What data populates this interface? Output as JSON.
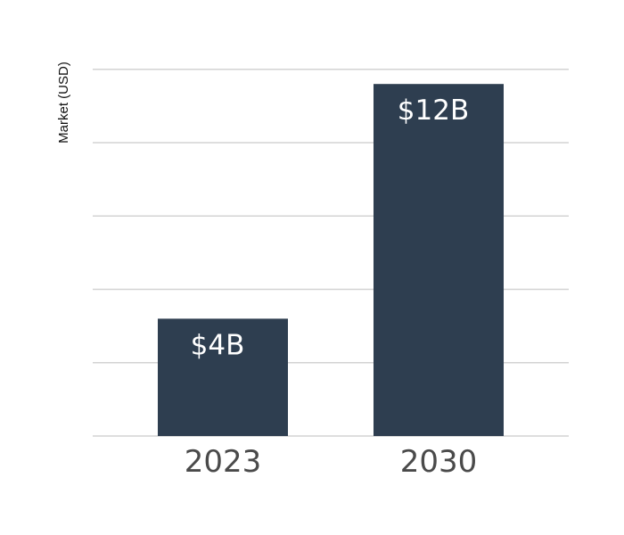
{
  "chart_data": {
    "type": "bar",
    "categories": [
      "2023",
      "2030"
    ],
    "values": [
      4,
      12
    ],
    "data_labels": [
      "$4B",
      "$12B"
    ],
    "title": "",
    "xlabel": "",
    "ylabel": "Market (USD)",
    "ylim": [
      0,
      12.5
    ],
    "grid": true,
    "colors": {
      "bar": "#2e3e50",
      "grid": "#d3d3d3",
      "label": "#ffffff"
    }
  }
}
